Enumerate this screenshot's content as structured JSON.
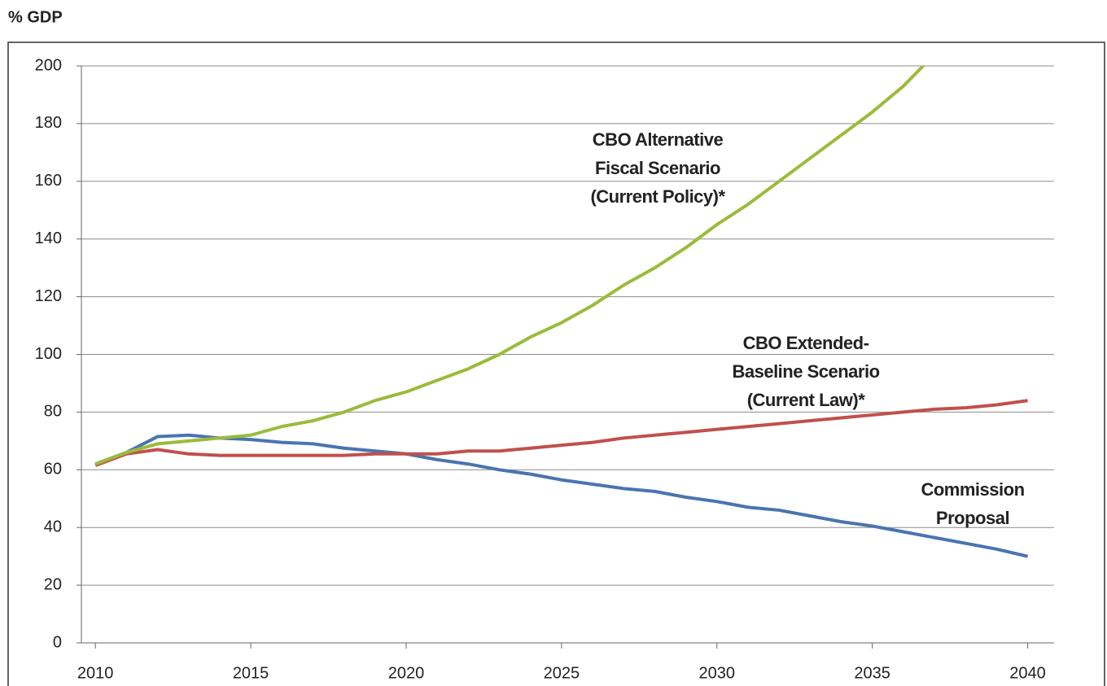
{
  "chart_data": {
    "type": "line",
    "ylabel": "% GDP",
    "x": [
      2010,
      2011,
      2012,
      2013,
      2014,
      2015,
      2016,
      2017,
      2018,
      2019,
      2020,
      2021,
      2022,
      2023,
      2024,
      2025,
      2026,
      2027,
      2028,
      2029,
      2030,
      2031,
      2032,
      2033,
      2034,
      2035,
      2036,
      2037,
      2038,
      2039,
      2040
    ],
    "series": [
      {
        "name": "Commission Proposal",
        "color": "#4a74b0",
        "values": [
          62,
          66,
          71.5,
          72,
          71,
          70.5,
          69.5,
          69,
          67.5,
          66.5,
          65.5,
          63.5,
          62,
          60,
          58.5,
          56.5,
          55,
          53.5,
          52.5,
          50.5,
          49,
          47,
          46,
          44,
          42,
          40.5,
          38.5,
          36.5,
          34.5,
          32.5,
          30
        ]
      },
      {
        "name": "CBO Extended-Baseline Scenario (Current Law)*",
        "color": "#c0504d",
        "values": [
          61.5,
          65.5,
          67,
          65.5,
          65,
          65,
          65,
          65,
          65,
          65.5,
          65.5,
          65.5,
          66.5,
          66.5,
          67.5,
          68.5,
          69.5,
          71,
          72,
          73,
          74,
          75,
          76,
          77,
          78,
          79,
          80,
          81,
          81.5,
          82.5,
          84
        ]
      },
      {
        "name": "CBO Alternative Fiscal Scenario (Current Policy)*",
        "color": "#9bbb3b",
        "values": [
          62,
          66,
          69,
          70,
          71,
          72,
          75,
          77,
          80,
          84,
          87,
          91,
          95,
          100,
          106,
          111,
          117,
          124,
          130,
          137,
          145,
          152,
          160,
          168,
          176,
          184,
          193,
          204,
          null,
          null,
          null
        ]
      }
    ],
    "annotations": [
      {
        "lines": [
          "Commission",
          "Proposal"
        ]
      },
      {
        "lines": [
          "CBO Extended-",
          "Baseline Scenario",
          "(Current Law)*"
        ]
      },
      {
        "lines": [
          "CBO Alternative",
          "Fiscal Scenario",
          "(Current Policy)*"
        ]
      }
    ],
    "xlim": [
      2009.55,
      2040.85
    ],
    "xticks": [
      2010,
      2015,
      2020,
      2025,
      2030,
      2035,
      2040
    ],
    "ylim": [
      0,
      200
    ],
    "yticks": [
      0,
      20,
      40,
      60,
      80,
      100,
      120,
      140,
      160,
      180,
      200
    ],
    "grid": true
  }
}
